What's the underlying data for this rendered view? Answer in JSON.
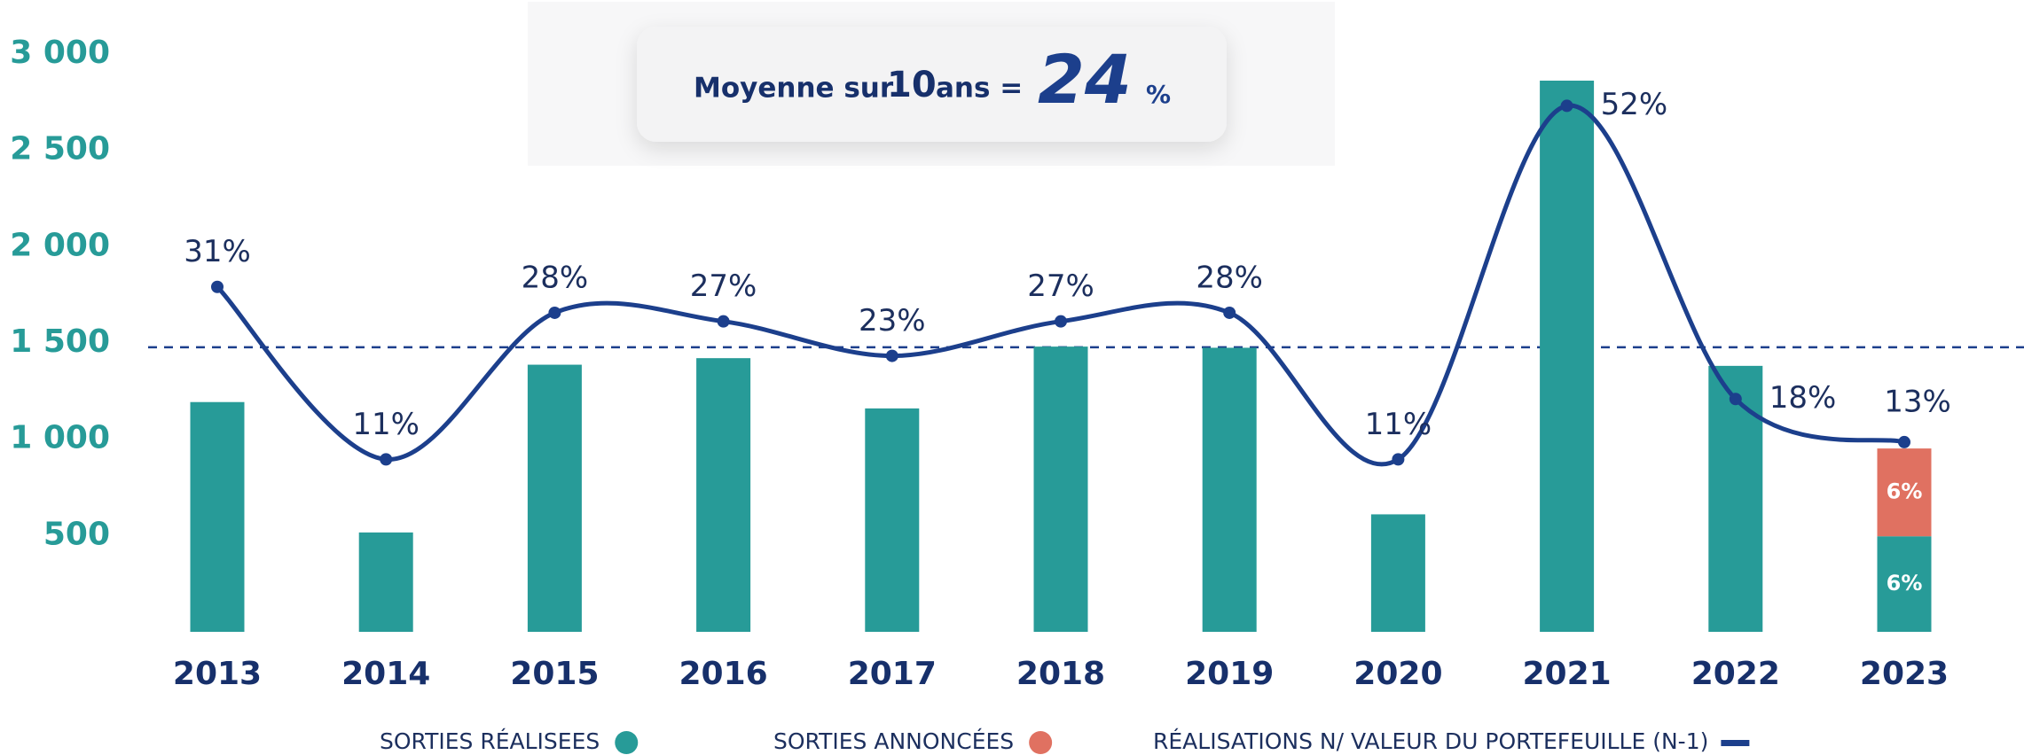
{
  "chart_data": {
    "type": "bar",
    "categories": [
      "2013",
      "2014",
      "2015",
      "2016",
      "2017",
      "2018",
      "2019",
      "2020",
      "2021",
      "2022",
      "2023"
    ],
    "series": [
      {
        "name": "SORTIES RÉALISEES",
        "color": "#279b98",
        "values": [
          1193,
          516,
          1387,
          1421,
          1160,
          1481,
          1475,
          610,
          2862,
          1381,
          496
        ],
        "percent_labels": [
          null,
          null,
          null,
          null,
          null,
          null,
          null,
          null,
          null,
          null,
          "6%"
        ]
      },
      {
        "name": "SORTIES ANNONCÉES",
        "color": "#e07161",
        "values": [
          null,
          null,
          null,
          null,
          null,
          null,
          null,
          null,
          null,
          null,
          456
        ],
        "percent_labels": [
          null,
          null,
          null,
          null,
          null,
          null,
          null,
          null,
          null,
          null,
          "6%"
        ]
      },
      {
        "name": "RÉALISATIONS N/ VALEUR DU PORTEFEUILLE (N-1)",
        "color": "#1c3f8c",
        "type": "line",
        "axis": "y2",
        "values": [
          31,
          11,
          28,
          27,
          23,
          27,
          28,
          11,
          52,
          18,
          13
        ],
        "value_labels": [
          "31%",
          "11%",
          "28%",
          "27%",
          "23%",
          "27%",
          "28%",
          "11%",
          "52%",
          "18%",
          "13%"
        ]
      }
    ],
    "ylim": [
      0,
      3000
    ],
    "yticks": [
      {
        "value": 500,
        "label": "500"
      },
      {
        "value": 1000,
        "label": "1 000"
      },
      {
        "value": 1500,
        "label": "1 500"
      },
      {
        "value": 2000,
        "label": "2 000"
      },
      {
        "value": 2500,
        "label": "2 500"
      },
      {
        "value": 3000,
        "label": "3 000"
      }
    ],
    "y2lim": [
      -9,
      58
    ],
    "average": {
      "text": "Moyenne sur",
      "years": 10,
      "text2": "ans =",
      "value": 24,
      "unit": "%"
    }
  }
}
